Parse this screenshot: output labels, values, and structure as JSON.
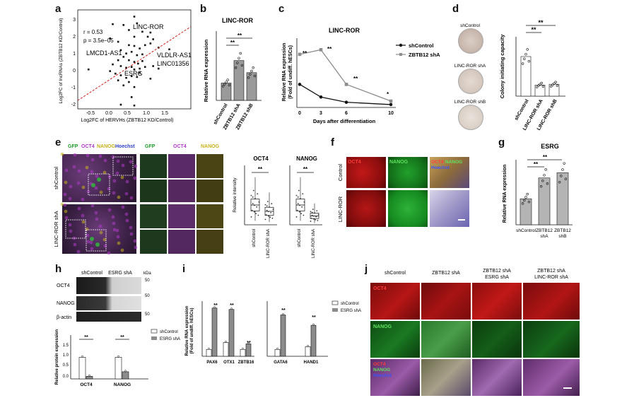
{
  "panel_letters": {
    "a": "a",
    "b": "b",
    "c": "c",
    "d": "d",
    "e": "e",
    "f": "f",
    "g": "g",
    "h": "h",
    "i": "i",
    "j": "j"
  },
  "colors": {
    "red": "#d21a1a",
    "green": "#1f9a2a",
    "grey": "#8c8c8c",
    "dark": "#111111",
    "yellow": "#c7b21a",
    "magenta": "#b13ac8",
    "blue": "#2c3ec8"
  },
  "panel_a": {
    "ylabel": "Log2FC of lncRNAs (ZBTB12 KD/Control)",
    "xlabel": "Log2FC of HERVHs (ZBTB12 KD/Control)",
    "stats_r": "r = 0.53",
    "stats_p": "p = 3.5e−05",
    "labels": [
      "LINC-ROR",
      "LMCD1-AS1",
      "VLDLR-AS1",
      "LINC01356",
      "ESRG"
    ],
    "xticks": [
      "-0.5",
      "0.0",
      "0.5",
      "1.0",
      "1.5"
    ],
    "yticks": [
      "-2",
      "-1",
      "0",
      "1",
      "2",
      "3"
    ]
  },
  "panel_b": {
    "title": "LINC-ROR",
    "ylabel": "Relative RNA expression",
    "sig": [
      "**",
      "**"
    ]
  },
  "panel_c": {
    "title": "LINC-ROR",
    "ylabel": "Relative RNA expression\n(Fold of undiff. hESCs)",
    "xlabel": "Days after differentiation",
    "legend": [
      "shControl",
      "ZBTB12 shA"
    ],
    "sig": [
      "**",
      "**",
      "**",
      "*"
    ]
  },
  "panel_d": {
    "plate_labels": [
      "shControl",
      "LINC-ROR shA",
      "LINC-ROR shB"
    ],
    "ylabel": "Colony initiating capacity",
    "sig": [
      "**",
      "**"
    ]
  },
  "panel_e": {
    "channels": [
      "GFP",
      "OCT4",
      "NANOG",
      "Hoechst"
    ],
    "row_labels": [
      "shControl",
      "LINC-ROR shA"
    ],
    "zoom_cols": [
      "GFP",
      "OCT4",
      "NANOG"
    ],
    "plot1_title": "OCT4",
    "plot2_title": "NANOG",
    "ylabel": "Relative intensity",
    "sig": "**"
  },
  "panel_f": {
    "cols": [
      "OCT4",
      "NANOG",
      "OCT4/NANOG/Hoechst"
    ],
    "rows": [
      "Control",
      "LINC-ROR"
    ]
  },
  "panel_g": {
    "title": "ESRG",
    "ylabel": "Relative RNA expression",
    "sig": [
      "**",
      "**"
    ]
  },
  "panel_h": {
    "blot_cols": [
      "shControl",
      "ESRG shA"
    ],
    "kda": "kDa",
    "rows": [
      "OCT4",
      "NANOG",
      "β-actin"
    ],
    "ylabel": "Relative protein expression",
    "legend": [
      "shControl",
      "ESRG shA"
    ],
    "sig": [
      "**",
      "**"
    ]
  },
  "panel_i": {
    "ylabel": "Relative RNA expression\n(Fold of undiff. hESCs)",
    "legend": [
      "shControl",
      "ESRG shA"
    ],
    "sig": [
      "**",
      "**",
      "**",
      "**",
      "**"
    ]
  },
  "panel_j": {
    "cols": [
      "shControl",
      "ZBTB12 shA",
      "ZBTB12 shA\nESRG shA",
      "ZBTB12 shA\nLINC-ROR shA"
    ],
    "rows": [
      "OCT4",
      "NANOG",
      "OCT4/NANOG/Hoechst"
    ]
  },
  "chart_data": [
    {
      "panel": "a",
      "type": "scatter",
      "xlabel": "Log2FC of HERVHs (ZBTB12 KD/Control)",
      "ylabel": "Log2FC of lncRNAs (ZBTB12 KD/Control)",
      "xlim": [
        -0.5,
        1.6
      ],
      "ylim": [
        -2.3,
        3.6
      ],
      "points": [
        [
          0.55,
          3.2
        ],
        [
          0.6,
          2.8
        ],
        [
          0.15,
          2.75
        ],
        [
          0.35,
          2.7
        ],
        [
          0.45,
          2.4
        ],
        [
          0.7,
          2.3
        ],
        [
          0.8,
          2.0
        ],
        [
          0.85,
          2.25
        ],
        [
          0.9,
          1.85
        ],
        [
          0.55,
          2.0
        ],
        [
          0.1,
          1.9
        ],
        [
          0.25,
          1.7
        ],
        [
          0.45,
          1.5
        ],
        [
          0.55,
          1.45
        ],
        [
          0.65,
          1.3
        ],
        [
          0.75,
          1.5
        ],
        [
          0.85,
          1.6
        ],
        [
          1.0,
          1.35
        ],
        [
          1.2,
          1.25
        ],
        [
          0.3,
          1.2
        ],
        [
          0.4,
          1.0
        ],
        [
          0.5,
          1.1
        ],
        [
          0.6,
          0.9
        ],
        [
          0.7,
          0.95
        ],
        [
          0.35,
          0.8
        ],
        [
          0.25,
          0.6
        ],
        [
          0.45,
          0.6
        ],
        [
          0.55,
          0.5
        ],
        [
          0.62,
          0.4
        ],
        [
          0.7,
          0.55
        ],
        [
          0.15,
          0.35
        ],
        [
          0.3,
          0.25
        ],
        [
          0.4,
          0.15
        ],
        [
          0.5,
          0.2
        ],
        [
          0.55,
          0.05
        ],
        [
          0.65,
          0.1
        ],
        [
          0.75,
          0.2
        ],
        [
          0.9,
          0.25
        ],
        [
          1.0,
          0.1
        ],
        [
          -0.3,
          0.05
        ],
        [
          0.1,
          -0.05
        ],
        [
          0.2,
          -0.2
        ],
        [
          0.3,
          -0.3
        ],
        [
          0.4,
          -0.45
        ],
        [
          0.5,
          -0.35
        ],
        [
          0.6,
          -0.4
        ],
        [
          0.45,
          -0.7
        ],
        [
          0.35,
          -0.9
        ],
        [
          0.55,
          -1.0
        ],
        [
          0.5,
          -1.6
        ],
        [
          0.3,
          -2.05
        ],
        [
          0.55,
          -2.1
        ],
        [
          0.25,
          -0.6
        ],
        [
          0.65,
          -0.15
        ],
        [
          0.85,
          -0.5
        ]
      ],
      "fit": {
        "x": [
          -0.5,
          1.6
        ],
        "y": [
          -1.8,
          2.6
        ]
      },
      "labels": [
        "LINC-ROR",
        "LMCD1-AS1",
        "VLDLR-AS1",
        "LINC01356",
        "ESRG"
      ]
    },
    {
      "panel": "b",
      "type": "bar",
      "title": "LINC-ROR",
      "ylabel": "Relative RNA expression",
      "categories": [
        "shControl",
        "ZBTB12 shA",
        "ZBTB12 shB"
      ],
      "values": [
        1.0,
        2.3,
        1.6
      ],
      "ylim": [
        0,
        4
      ]
    },
    {
      "panel": "c",
      "type": "line",
      "title": "LINC-ROR",
      "ylabel": "Relative RNA expression",
      "xlabel": "Days after differentiation",
      "x": [
        0,
        3,
        6,
        10
      ],
      "ylim": [
        0,
        6
      ],
      "series": [
        {
          "name": "shControl",
          "values": [
            2.0,
            0.9,
            0.45,
            0.25
          ]
        },
        {
          "name": "ZBTB12 shA",
          "values": [
            4.6,
            5.0,
            2.0,
            0.55
          ]
        }
      ]
    },
    {
      "panel": "d",
      "type": "bar",
      "ylabel": "Colony initiating capacity",
      "categories": [
        "shControl",
        "LINC-ROR shA",
        "LINC-ROR shB"
      ],
      "values": [
        1.0,
        0.28,
        0.3
      ],
      "ylim": [
        0,
        1.5
      ]
    },
    {
      "panel": "e1",
      "type": "bar",
      "title": "OCT4",
      "ylabel": "Relative intensity",
      "categories": [
        "shControl",
        "LINC-ROR shA"
      ],
      "values": [
        1.0,
        0.68
      ],
      "ylim": [
        0,
        3
      ]
    },
    {
      "panel": "e2",
      "type": "bar",
      "title": "NANOG",
      "categories": [
        "shControl",
        "LINC-ROR shA"
      ],
      "values": [
        1.0,
        0.45
      ],
      "ylim": [
        0,
        3
      ]
    },
    {
      "panel": "g",
      "type": "bar",
      "title": "ESRG",
      "ylabel": "Relative RNA expression",
      "categories": [
        "shControl",
        "ZBTB12 shA",
        "ZBTB12 shB"
      ],
      "values": [
        1.0,
        1.8,
        2.0
      ],
      "ylim": [
        0,
        2.5
      ]
    },
    {
      "panel": "h",
      "type": "bar",
      "ylabel": "Relative protein expression",
      "categories": [
        "OCT4",
        "NANOG"
      ],
      "series": [
        {
          "name": "shControl",
          "values": [
            1.0,
            1.0
          ]
        },
        {
          "name": "ESRG shA",
          "values": [
            0.12,
            0.33
          ]
        }
      ],
      "ylim": [
        0,
        1.5
      ]
    },
    {
      "panel": "i1",
      "type": "bar",
      "ylabel": "Relative RNA expression",
      "categories": [
        "PAX6",
        "OTX1",
        "ZBTB16"
      ],
      "series": [
        {
          "name": "shControl",
          "values": [
            5,
            10,
            5
          ]
        },
        {
          "name": "ESRG shA",
          "values": [
            35,
            34,
            9
          ]
        }
      ],
      "ylim": [
        0,
        40
      ]
    },
    {
      "panel": "i2",
      "type": "bar",
      "categories": [
        "GATA6",
        "HAND1"
      ],
      "series": [
        {
          "name": "shControl",
          "values": [
            100,
            140
          ]
        },
        {
          "name": "ESRG shA",
          "values": [
            600,
            450
          ]
        }
      ],
      "ylim": [
        0,
        800
      ]
    }
  ]
}
